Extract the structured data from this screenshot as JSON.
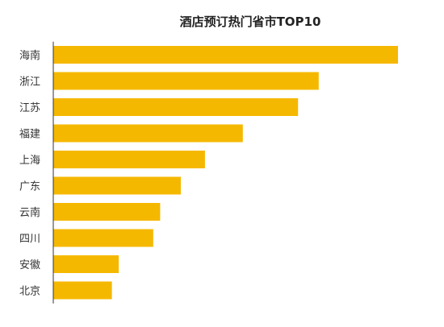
{
  "chart_data": {
    "type": "bar",
    "orientation": "horizontal",
    "title": "酒店预订热门省市TOP10",
    "xlabel": "",
    "ylabel": "",
    "categories": [
      "海南",
      "浙江",
      "江苏",
      "福建",
      "上海",
      "广东",
      "云南",
      "四川",
      "安徽",
      "北京"
    ],
    "values": [
      100,
      77,
      71,
      55,
      44,
      37,
      31,
      29,
      19,
      17
    ],
    "xlim": [
      0,
      100
    ],
    "grid": false,
    "legend": "none",
    "bar_color": "#F5B800",
    "axis_color": "#333333"
  }
}
